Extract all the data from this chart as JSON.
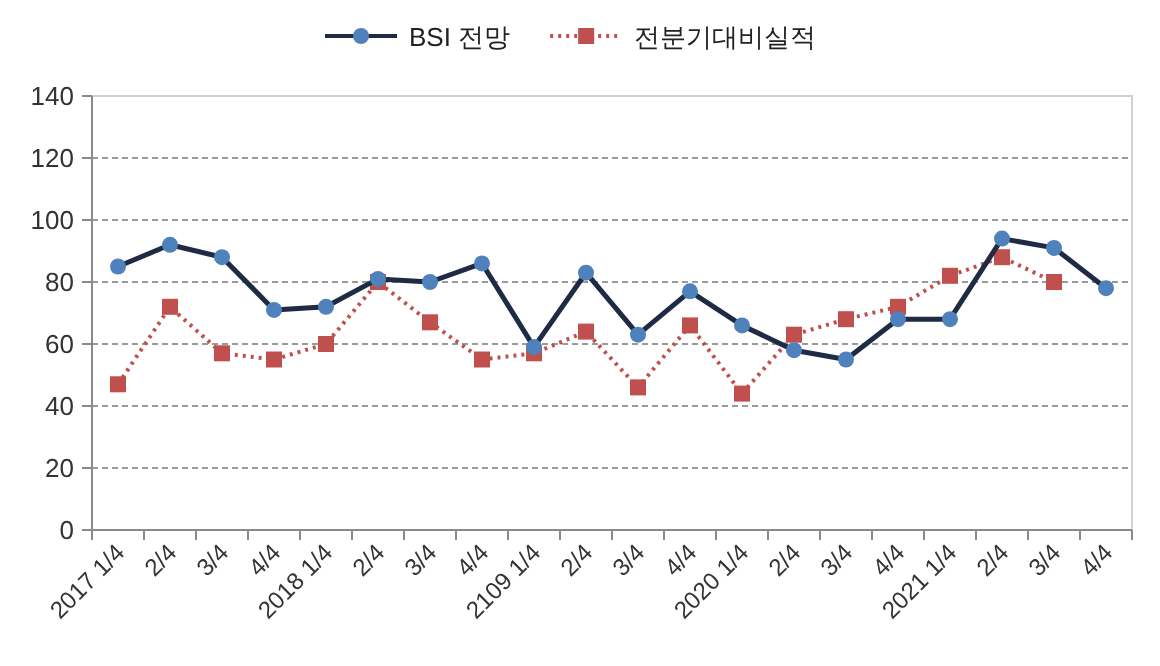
{
  "chart_data": {
    "type": "line",
    "categories": [
      "2017 1/4",
      "2/4",
      "3/4",
      "4/4",
      "2018 1/4",
      "2/4",
      "3/4",
      "4/4",
      "2109 1/4",
      "2/4",
      "3/4",
      "4/4",
      "2020 1/4",
      "2/4",
      "3/4",
      "4/4",
      "2021 1/4",
      "2/4",
      "3/4",
      "4/4"
    ],
    "series": [
      {
        "name": "BSI 전망",
        "color": "#4f81bd",
        "marker": "circle",
        "line_style": "solid",
        "values": [
          85,
          92,
          88,
          71,
          72,
          81,
          80,
          86,
          59,
          83,
          63,
          77,
          66,
          58,
          55,
          68,
          68,
          94,
          91,
          78
        ]
      },
      {
        "name": "전분기대비실적",
        "color": "#c0504d",
        "marker": "square",
        "line_style": "dotted",
        "values": [
          47,
          72,
          57,
          55,
          60,
          80,
          67,
          55,
          57,
          64,
          46,
          66,
          44,
          63,
          68,
          72,
          82,
          88,
          80,
          null
        ]
      }
    ],
    "ylim": [
      0,
      140
    ],
    "yticks": [
      0,
      20,
      40,
      60,
      80,
      100,
      120,
      140
    ],
    "grid": "y",
    "legend": "top"
  }
}
